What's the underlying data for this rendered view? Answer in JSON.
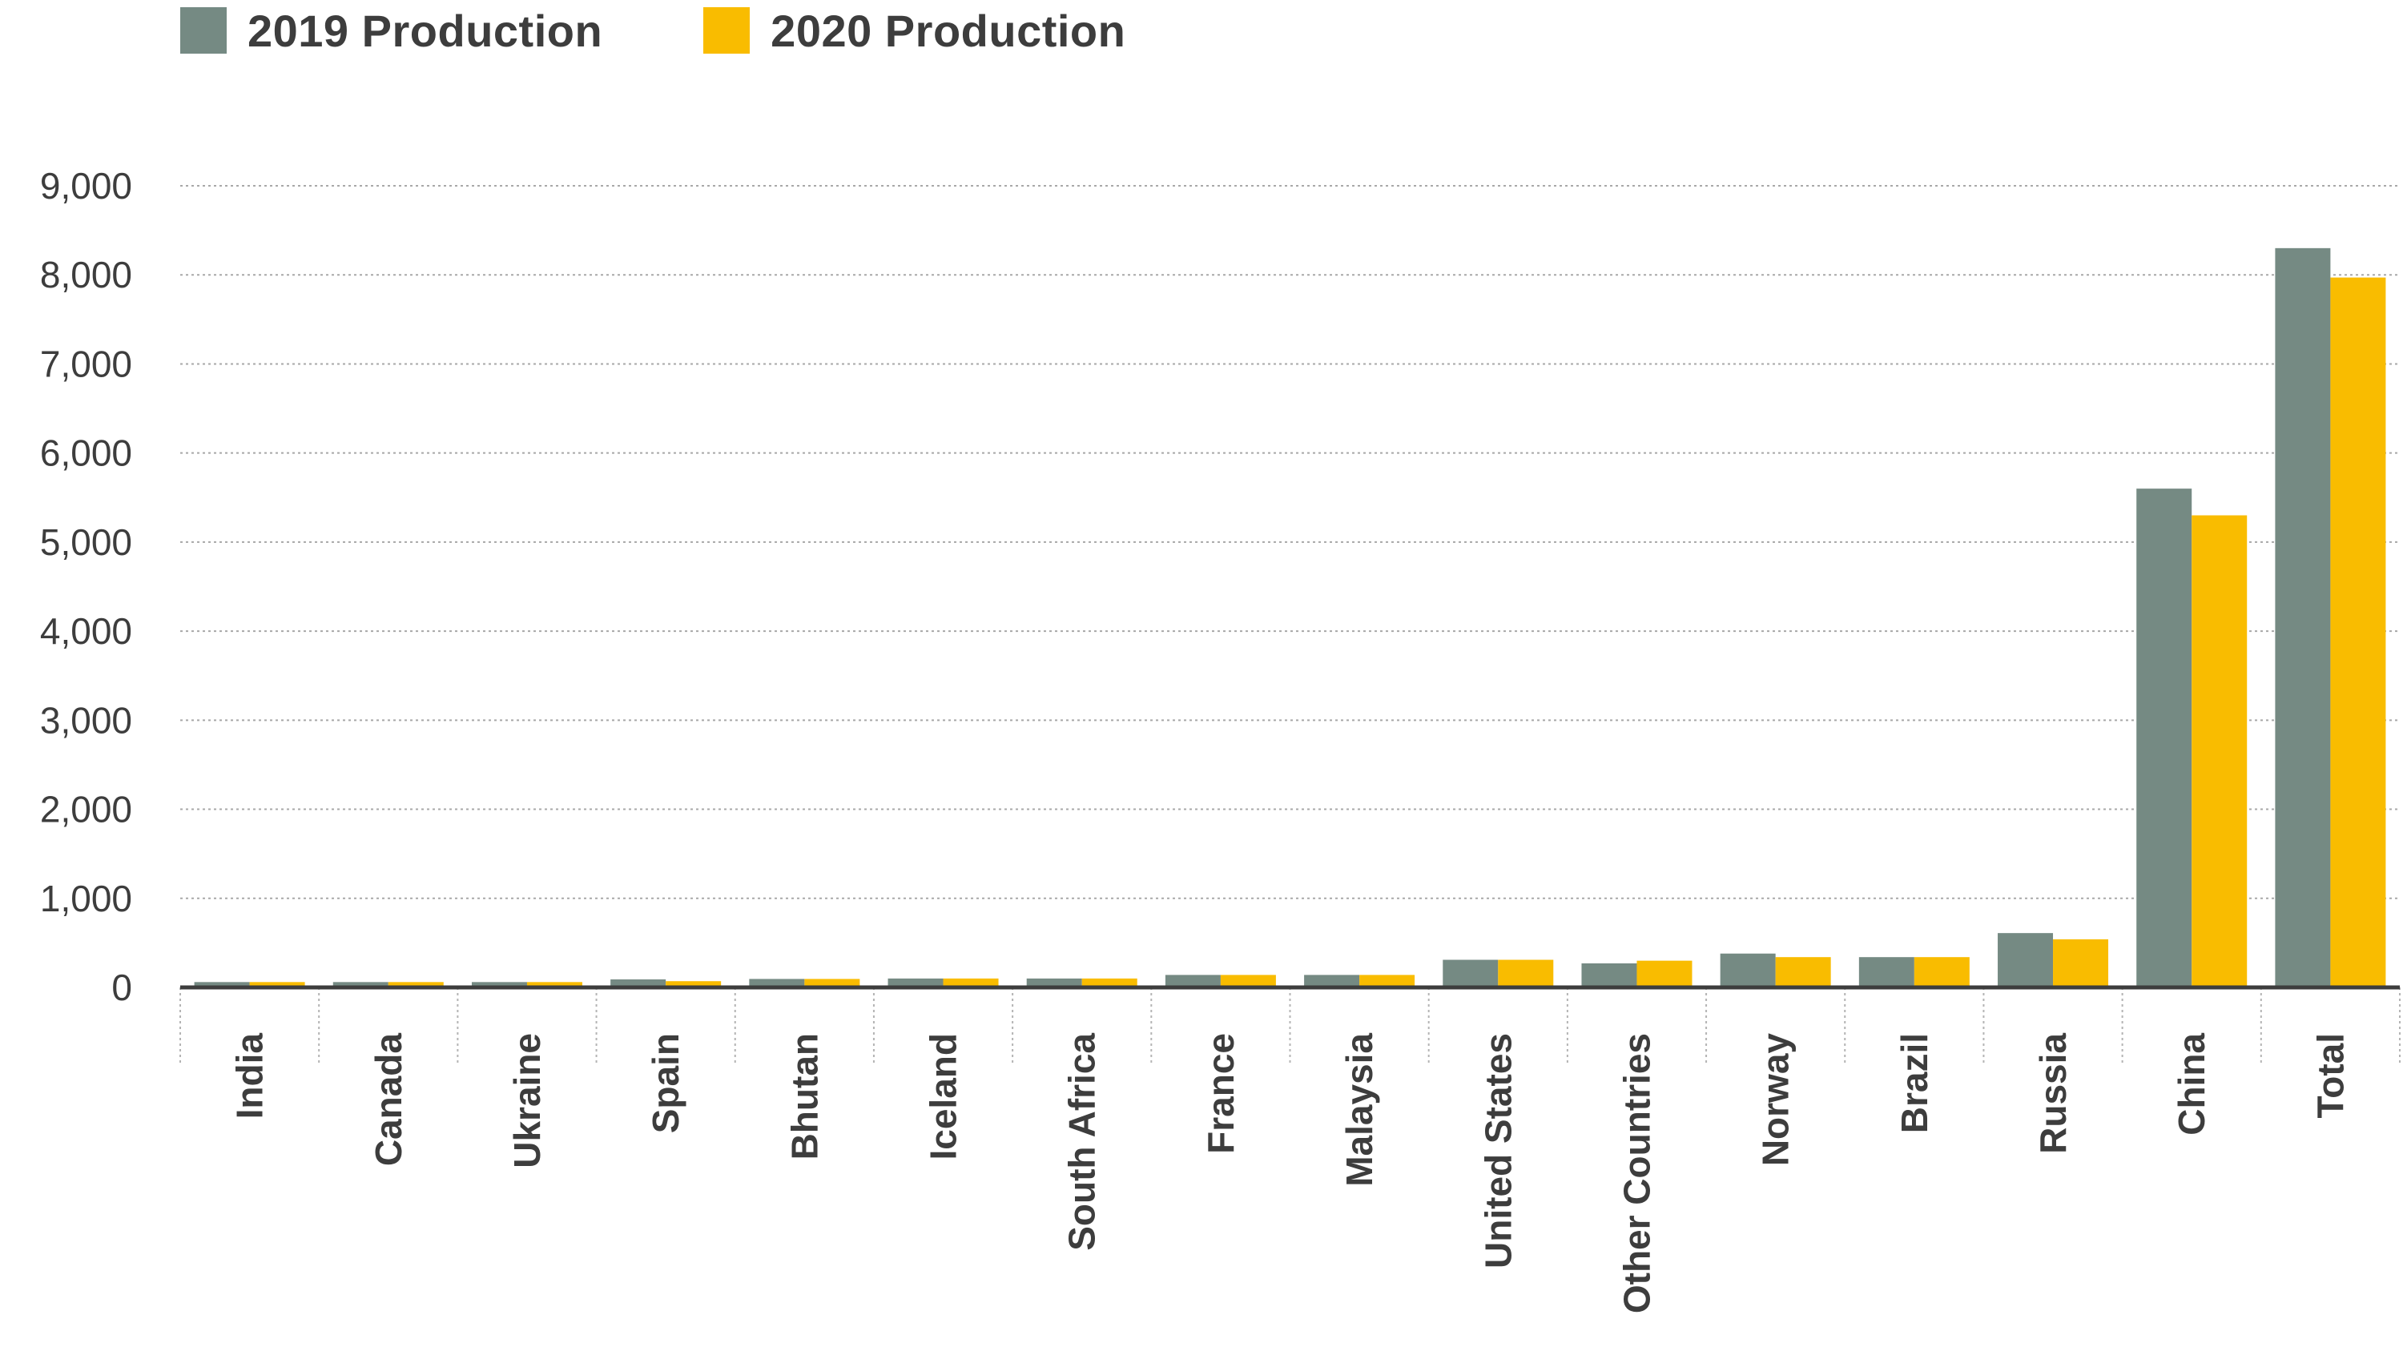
{
  "chart_data": {
    "type": "bar",
    "categories": [
      "India",
      "Canada",
      "Ukraine",
      "Spain",
      "Bhutan",
      "Iceland",
      "South Africa",
      "France",
      "Malaysia",
      "United States",
      "Other Countries",
      "Norway",
      "Brazil",
      "Russia",
      "China",
      "Total"
    ],
    "series": [
      {
        "name": "2019 Production",
        "color": "#758a83",
        "values": [
          60,
          60,
          60,
          90,
          95,
          100,
          100,
          140,
          140,
          310,
          270,
          380,
          340,
          610,
          5600,
          8300
        ]
      },
      {
        "name": "2020 Production",
        "color": "#f9bc00",
        "values": [
          60,
          60,
          60,
          70,
          95,
          100,
          100,
          140,
          140,
          310,
          300,
          340,
          340,
          540,
          5300,
          7970
        ]
      }
    ],
    "yticks": [
      "0",
      "1,000",
      "2,000",
      "3,000",
      "4,000",
      "5,000",
      "6,000",
      "7,000",
      "8,000",
      "9,000"
    ],
    "ylim": [
      0,
      9000
    ],
    "grid": true,
    "legend_position": "top-left"
  }
}
